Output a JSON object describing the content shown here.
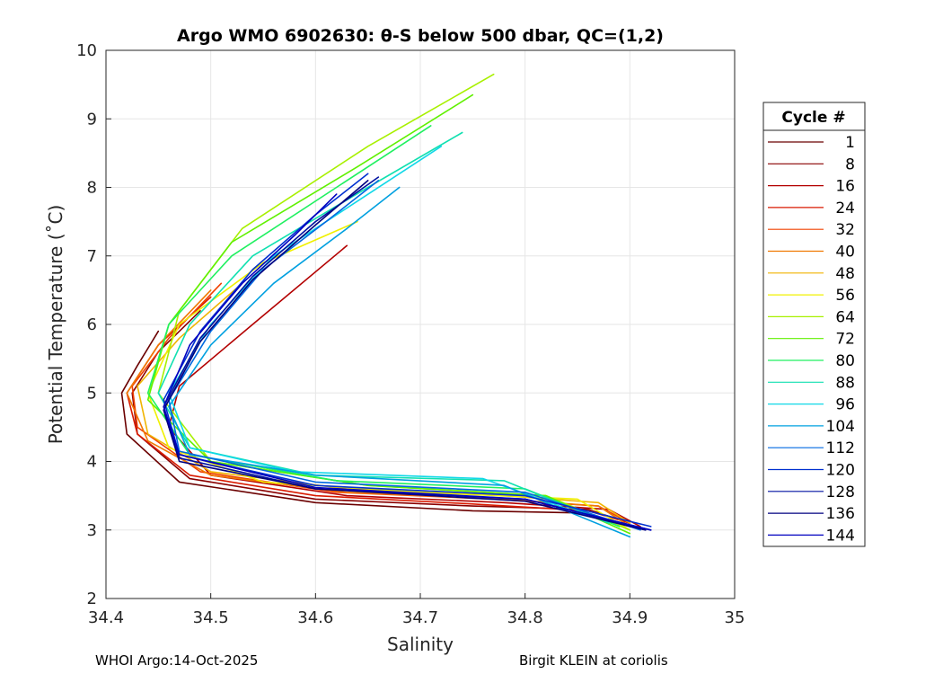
{
  "chart_data": {
    "type": "line",
    "title": "Argo WMO 6902630: θ-S below 500 dbar,  QC=(1,2)",
    "xlabel": "Salinity",
    "ylabel": "Potential Temperature (˚C)",
    "xlim": [
      34.4,
      35
    ],
    "ylim": [
      2,
      10
    ],
    "xticks": [
      "34.4",
      "34.5",
      "34.6",
      "34.7",
      "34.8",
      "34.9",
      "35"
    ],
    "yticks": [
      "2",
      "3",
      "4",
      "5",
      "6",
      "7",
      "8",
      "9",
      "10"
    ],
    "grid": true,
    "legend": {
      "title": "Cycle #",
      "placement": "right",
      "entries": [
        {
          "label": "1",
          "color": "#6b0000"
        },
        {
          "label": "8",
          "color": "#8a0000"
        },
        {
          "label": "16",
          "color": "#b30000"
        },
        {
          "label": "24",
          "color": "#d91a00"
        },
        {
          "label": "32",
          "color": "#f04000"
        },
        {
          "label": "40",
          "color": "#f07800"
        },
        {
          "label": "48",
          "color": "#f0b400"
        },
        {
          "label": "56",
          "color": "#f0f000"
        },
        {
          "label": "64",
          "color": "#a8f000"
        },
        {
          "label": "72",
          "color": "#60f000"
        },
        {
          "label": "80",
          "color": "#20f060"
        },
        {
          "label": "88",
          "color": "#10e0b0"
        },
        {
          "label": "96",
          "color": "#10d8e8"
        },
        {
          "label": "104",
          "color": "#00a0e0"
        },
        {
          "label": "112",
          "color": "#0068e0"
        },
        {
          "label": "120",
          "color": "#0030d0"
        },
        {
          "label": "128",
          "color": "#0010a0"
        },
        {
          "label": "136",
          "color": "#000080"
        },
        {
          "label": "144",
          "color": "#0000c0"
        }
      ]
    },
    "series": [
      {
        "name": "Cycle 1",
        "color": "#6b0000",
        "x": [
          34.45,
          34.43,
          34.415,
          34.42,
          34.47,
          34.6,
          34.75,
          34.85,
          34.9
        ],
        "y": [
          5.9,
          5.4,
          5.0,
          4.4,
          3.7,
          3.4,
          3.28,
          3.25,
          3.05
        ]
      },
      {
        "name": "Cycle 8",
        "color": "#8a0000",
        "x": [
          34.49,
          34.45,
          34.425,
          34.43,
          34.48,
          34.6,
          34.75,
          34.86,
          34.9
        ],
        "y": [
          6.2,
          5.6,
          5.0,
          4.4,
          3.75,
          3.45,
          3.35,
          3.3,
          3.1
        ]
      },
      {
        "name": "Cycle 16",
        "color": "#b30000",
        "x": [
          34.63,
          34.54,
          34.47,
          34.46,
          34.5,
          34.63,
          34.78,
          34.88,
          34.91
        ],
        "y": [
          7.15,
          6.0,
          5.1,
          4.5,
          3.8,
          3.5,
          3.4,
          3.3,
          3.05
        ]
      },
      {
        "name": "Cycle 24",
        "color": "#d91a00",
        "x": [
          34.5,
          34.45,
          34.42,
          34.43,
          34.48,
          34.6,
          34.75,
          34.86,
          34.9
        ],
        "y": [
          6.4,
          5.7,
          5.0,
          4.4,
          3.8,
          3.5,
          3.38,
          3.28,
          3.1
        ]
      },
      {
        "name": "Cycle 32",
        "color": "#f04000",
        "x": [
          34.51,
          34.46,
          34.425,
          34.43,
          34.49,
          34.62,
          34.77,
          34.87,
          34.9
        ],
        "y": [
          6.6,
          5.8,
          5.1,
          4.5,
          3.85,
          3.55,
          3.45,
          3.35,
          3.1
        ]
      },
      {
        "name": "Cycle 40",
        "color": "#f07800",
        "x": [
          34.5,
          34.45,
          34.42,
          34.44,
          34.5,
          34.63,
          34.78,
          34.87,
          34.9
        ],
        "y": [
          6.5,
          5.7,
          5.0,
          4.3,
          3.8,
          3.55,
          3.45,
          3.35,
          3.05
        ]
      },
      {
        "name": "Cycle 48",
        "color": "#f0b400",
        "x": [
          34.53,
          34.47,
          34.43,
          34.44,
          34.5,
          34.63,
          34.78,
          34.87,
          34.9
        ],
        "y": [
          6.6,
          5.8,
          5.1,
          4.4,
          3.85,
          3.6,
          3.5,
          3.4,
          3.1
        ]
      },
      {
        "name": "Cycle 56",
        "color": "#f0f000",
        "x": [
          34.64,
          34.55,
          34.47,
          34.44,
          34.46,
          34.55,
          34.7,
          34.85,
          34.9
        ],
        "y": [
          7.5,
          6.9,
          6.0,
          5.0,
          4.2,
          3.7,
          3.55,
          3.45,
          3.0
        ]
      },
      {
        "name": "Cycle 64",
        "color": "#a8f000",
        "x": [
          34.77,
          34.65,
          34.53,
          34.47,
          34.45,
          34.5,
          34.65,
          34.82,
          34.9
        ],
        "y": [
          9.65,
          8.6,
          7.4,
          6.2,
          5.0,
          4.0,
          3.65,
          3.5,
          3.0
        ]
      },
      {
        "name": "Cycle 72",
        "color": "#60f000",
        "x": [
          34.75,
          34.64,
          34.52,
          34.46,
          34.44,
          34.5,
          34.65,
          34.82,
          34.9
        ],
        "y": [
          9.35,
          8.3,
          7.2,
          6.0,
          4.9,
          4.0,
          3.65,
          3.5,
          2.95
        ]
      },
      {
        "name": "Cycle 80",
        "color": "#20f060",
        "x": [
          34.71,
          34.62,
          34.52,
          34.46,
          34.44,
          34.48,
          34.62,
          34.8,
          34.89
        ],
        "y": [
          8.9,
          8.0,
          7.0,
          6.0,
          5.0,
          4.1,
          3.72,
          3.6,
          3.05
        ]
      },
      {
        "name": "Cycle 88",
        "color": "#10e0b0",
        "x": [
          34.74,
          34.65,
          34.54,
          34.48,
          34.45,
          34.48,
          34.6,
          34.78,
          34.88
        ],
        "y": [
          8.8,
          8.0,
          7.0,
          6.0,
          5.0,
          4.2,
          3.8,
          3.72,
          3.1
        ]
      },
      {
        "name": "Cycle 96",
        "color": "#10d8e8",
        "x": [
          34.72,
          34.64,
          34.56,
          34.5,
          34.46,
          34.48,
          34.58,
          34.76,
          34.86
        ],
        "y": [
          8.6,
          7.8,
          7.0,
          6.0,
          5.0,
          4.2,
          3.85,
          3.75,
          3.2
        ]
      },
      {
        "name": "Cycle 104",
        "color": "#00a0e0",
        "x": [
          34.68,
          34.63,
          34.56,
          34.5,
          34.46,
          34.48,
          34.6,
          34.78,
          34.9
        ],
        "y": [
          8.0,
          7.4,
          6.6,
          5.7,
          4.8,
          4.1,
          3.8,
          3.65,
          2.9
        ]
      },
      {
        "name": "Cycle 112",
        "color": "#0068e0",
        "x": [
          34.66,
          34.61,
          34.55,
          34.5,
          34.46,
          34.47,
          34.6,
          34.8,
          34.91
        ],
        "y": [
          8.1,
          7.5,
          6.8,
          5.9,
          4.9,
          4.15,
          3.7,
          3.55,
          3.0
        ]
      },
      {
        "name": "Cycle 120",
        "color": "#0030d0",
        "x": [
          34.65,
          34.6,
          34.54,
          34.49,
          34.455,
          34.47,
          34.6,
          34.8,
          34.92
        ],
        "y": [
          8.2,
          7.6,
          6.8,
          5.9,
          4.9,
          4.1,
          3.65,
          3.5,
          3.05
        ]
      },
      {
        "name": "Cycle 128",
        "color": "#0010a0",
        "x": [
          34.66,
          34.6,
          34.54,
          34.49,
          34.455,
          34.47,
          34.6,
          34.8,
          34.92
        ],
        "y": [
          8.15,
          7.5,
          6.7,
          5.8,
          4.8,
          4.05,
          3.6,
          3.45,
          3.0
        ]
      },
      {
        "name": "Cycle 136",
        "color": "#000080",
        "x": [
          34.65,
          34.6,
          34.54,
          34.49,
          34.455,
          34.47,
          34.6,
          34.8,
          34.915
        ],
        "y": [
          8.1,
          7.45,
          6.65,
          5.75,
          4.75,
          4.0,
          3.6,
          3.42,
          3.0
        ]
      },
      {
        "name": "Cycle 144",
        "color": "#0000c0",
        "x": [
          34.62,
          34.58,
          34.53,
          34.48,
          34.455,
          34.47,
          34.6,
          34.8,
          34.92
        ],
        "y": [
          7.9,
          7.3,
          6.6,
          5.7,
          4.8,
          4.1,
          3.62,
          3.45,
          3.0
        ]
      }
    ]
  },
  "footer": {
    "left": "WHOI Argo:14-Oct-2025",
    "right": "Birgit KLEIN at coriolis"
  }
}
